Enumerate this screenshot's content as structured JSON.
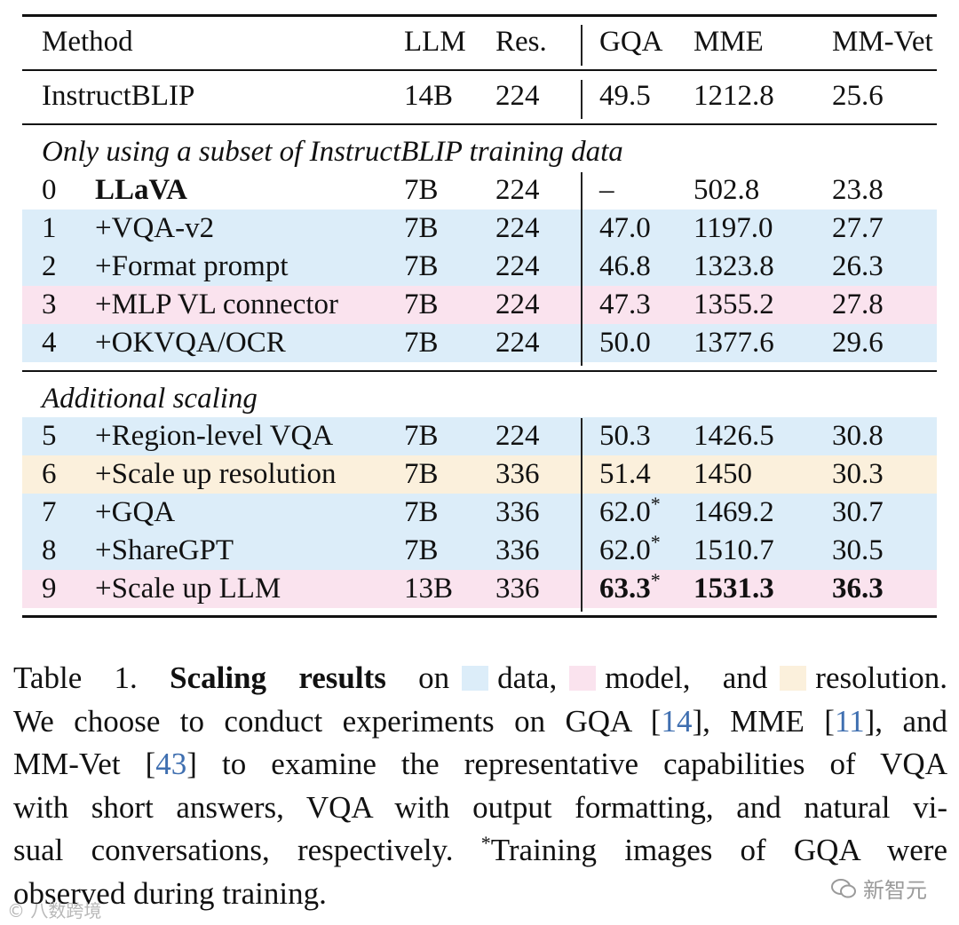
{
  "colors": {
    "data": "#dcedf9",
    "model": "#fae3ee",
    "resolution": "#fbf0dc",
    "cite": "#3f6fb0"
  },
  "table": {
    "headers": {
      "method": "Method",
      "llm": "LLM",
      "res": "Res.",
      "gqa": "GQA",
      "mme": "MME",
      "mmvet": "MM-Vet"
    },
    "baseline": {
      "method": "InstructBLIP",
      "llm": "14B",
      "res": "224",
      "gqa": "49.5",
      "mme": "1212.8",
      "mmvet": "25.6"
    },
    "section1_title": "Only using a subset of InstructBLIP training data",
    "section2_title": "Additional scaling",
    "rows": [
      {
        "num": "0",
        "method": "LLaVA",
        "llm": "7B",
        "res": "224",
        "gqa": "–",
        "gqa_star": "",
        "mme": "502.8",
        "mmvet": "23.8",
        "highlight": "none"
      },
      {
        "num": "1",
        "method": "+VQA-v2",
        "llm": "7B",
        "res": "224",
        "gqa": "47.0",
        "gqa_star": "",
        "mme": "1197.0",
        "mmvet": "27.7",
        "highlight": "data"
      },
      {
        "num": "2",
        "method": "+Format prompt",
        "llm": "7B",
        "res": "224",
        "gqa": "46.8",
        "gqa_star": "",
        "mme": "1323.8",
        "mmvet": "26.3",
        "highlight": "data"
      },
      {
        "num": "3",
        "method": "+MLP VL connector",
        "llm": "7B",
        "res": "224",
        "gqa": "47.3",
        "gqa_star": "",
        "mme": "1355.2",
        "mmvet": "27.8",
        "highlight": "model"
      },
      {
        "num": "4",
        "method": "+OKVQA/OCR",
        "llm": "7B",
        "res": "224",
        "gqa": "50.0",
        "gqa_star": "",
        "mme": "1377.6",
        "mmvet": "29.6",
        "highlight": "data"
      },
      {
        "num": "5",
        "method": "+Region-level VQA",
        "llm": "7B",
        "res": "224",
        "gqa": "50.3",
        "gqa_star": "",
        "mme": "1426.5",
        "mmvet": "30.8",
        "highlight": "data"
      },
      {
        "num": "6",
        "method": "+Scale up resolution",
        "llm": "7B",
        "res": "336",
        "gqa": "51.4",
        "gqa_star": "",
        "mme": "1450",
        "mmvet": "30.3",
        "highlight": "resolution"
      },
      {
        "num": "7",
        "method": "+GQA",
        "llm": "7B",
        "res": "336",
        "gqa": "62.0",
        "gqa_star": "*",
        "mme": "1469.2",
        "mmvet": "30.7",
        "highlight": "data"
      },
      {
        "num": "8",
        "method": "+ShareGPT",
        "llm": "7B",
        "res": "336",
        "gqa": "62.0",
        "gqa_star": "*",
        "mme": "1510.7",
        "mmvet": "30.5",
        "highlight": "data"
      },
      {
        "num": "9",
        "method": "+Scale up LLM",
        "llm": "13B",
        "res": "336",
        "gqa": "63.3",
        "gqa_star": "*",
        "mme": "1531.3",
        "mmvet": "36.3",
        "highlight": "model"
      }
    ]
  },
  "caption": {
    "label": "Table 1.",
    "bold": "Scaling results",
    "on": "on",
    "data_word": "data,",
    "model_word": "model, and",
    "resolution_word": "resolution.",
    "l2a": "We choose to conduct experiments on GQA [",
    "cite1": "14",
    "l2b": "], MME [",
    "cite2": "11",
    "l2c": "], and",
    "l3a": "MM-Vet [",
    "cite3": "43",
    "l3b": "] to examine the representative capabilities of VQA",
    "l4": "with short answers, VQA with output formatting, and natural vi-",
    "l5a": "sual conversations, respectively.",
    "l5star": "*",
    "l5b": "Training images of GQA were",
    "l6": "observed during training."
  },
  "watermark": {
    "right": "新智元",
    "left": "© 八数跨境"
  }
}
